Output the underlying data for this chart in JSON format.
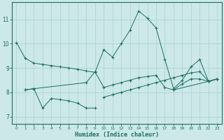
{
  "title": "",
  "xlabel": "Humidex (Indice chaleur)",
  "bg_color": "#cce8e8",
  "line_color": "#1a6e64",
  "grid_color": "#aad0d0",
  "xlim": [
    -0.5,
    23.5
  ],
  "ylim": [
    6.7,
    11.7
  ],
  "xticks": [
    0,
    1,
    2,
    3,
    4,
    5,
    6,
    7,
    8,
    9,
    10,
    11,
    12,
    13,
    14,
    15,
    16,
    17,
    18,
    19,
    20,
    21,
    22,
    23
  ],
  "yticks": [
    7,
    8,
    9,
    10,
    11
  ],
  "series0_x": [
    0,
    1,
    2,
    3,
    4,
    5,
    6,
    7,
    8,
    9,
    10,
    11,
    12,
    13,
    14,
    15,
    16,
    17,
    18,
    19,
    20,
    21,
    22,
    23
  ],
  "series0_y": [
    10.05,
    9.4,
    9.2,
    9.15,
    9.1,
    9.05,
    9.0,
    8.95,
    8.88,
    8.82,
    9.75,
    9.45,
    10.0,
    10.55,
    11.35,
    11.05,
    10.65,
    9.35,
    8.15,
    8.5,
    9.05,
    9.35,
    8.45,
    8.55
  ],
  "series1_segs": [
    {
      "x": [
        1,
        2,
        3,
        4,
        5,
        6,
        7,
        8,
        9
      ],
      "y": [
        8.1,
        8.15,
        7.35,
        7.75,
        7.7,
        7.65,
        7.55,
        7.35,
        7.35
      ]
    },
    {
      "x": [
        18,
        22,
        23
      ],
      "y": [
        8.1,
        8.45,
        8.55
      ]
    }
  ],
  "series2_x": [
    1,
    2,
    8,
    9,
    10,
    11,
    12,
    13,
    14,
    15,
    16,
    17,
    18,
    19,
    20,
    21,
    22,
    23
  ],
  "series2_y": [
    8.1,
    8.15,
    8.4,
    8.85,
    8.2,
    8.3,
    8.4,
    8.5,
    8.6,
    8.65,
    8.7,
    8.2,
    8.1,
    8.35,
    8.55,
    8.55,
    8.45,
    8.55
  ],
  "series3_x": [
    10,
    11,
    12,
    13,
    14,
    15,
    16,
    17,
    18,
    19,
    20,
    21,
    22,
    23
  ],
  "series3_y": [
    7.8,
    7.9,
    8.0,
    8.1,
    8.2,
    8.3,
    8.4,
    8.5,
    8.6,
    8.7,
    8.8,
    8.85,
    8.45,
    8.55
  ]
}
